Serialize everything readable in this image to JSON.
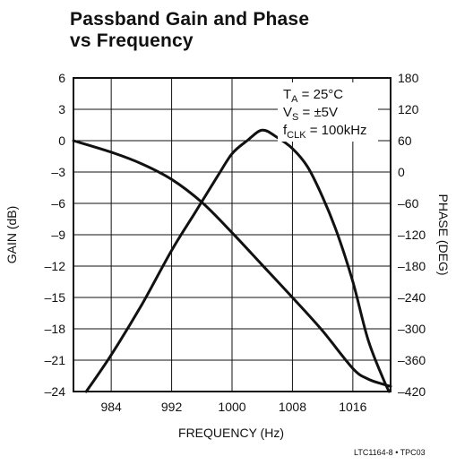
{
  "chart_data": {
    "type": "line",
    "title_line1": "Passband Gain and Phase",
    "title_line2": "vs Frequency",
    "xlabel": "FREQUENCY (Hz)",
    "ylabel_left": "GAIN (dB)",
    "ylabel_right": "PHASE (DEG)",
    "xlim": [
      979,
      1021
    ],
    "ylim_left": [
      -24,
      6
    ],
    "ylim_right": [
      -420,
      180
    ],
    "x_ticks": [
      "984",
      "992",
      "1000",
      "1008",
      "1016"
    ],
    "x_tick_values": [
      984,
      992,
      1000,
      1008,
      1016
    ],
    "y_left_ticks": [
      "6",
      "3",
      "0",
      "–3",
      "–6",
      "–9",
      "–12",
      "–15",
      "–18",
      "–21",
      "–24"
    ],
    "y_right_ticks": [
      "180",
      "120",
      "60",
      "0",
      "–60",
      "–120",
      "–180",
      "–240",
      "–300",
      "–360",
      "–420"
    ],
    "annotations": {
      "ta_main": "T",
      "ta_sub": "A",
      "ta_rest": " = 25°C",
      "vs_main": "V",
      "vs_sub": "S",
      "vs_rest": " = ±5V",
      "fclk_main": "f",
      "fclk_sub": "CLK",
      "fclk_rest": " = 100kHz"
    },
    "series": [
      {
        "axis": "left",
        "x": [
          979,
          984,
          988,
          992,
          996,
          1000,
          1004,
          1008,
          1012,
          1016,
          1018,
          1020,
          1021
        ],
        "values": [
          0,
          -1.1,
          -2.2,
          -3.7,
          -5.9,
          -8.8,
          -11.9,
          -15.0,
          -18.2,
          -21.8,
          -22.8,
          -23.3,
          -23.5
        ]
      },
      {
        "axis": "right",
        "x": [
          980.7,
          984,
          988,
          992,
          995,
          998,
          1000,
          1002,
          1004,
          1006,
          1008,
          1010,
          1012,
          1014,
          1016,
          1018,
          1020,
          1020.8
        ],
        "values": [
          -420,
          -350,
          -255,
          -150,
          -80,
          -10,
          35,
          60,
          80,
          66,
          45,
          10,
          -48,
          -120,
          -210,
          -320,
          -395,
          -420
        ]
      }
    ]
  },
  "footer": {
    "code": "LTC1164-8 • TPC03"
  }
}
